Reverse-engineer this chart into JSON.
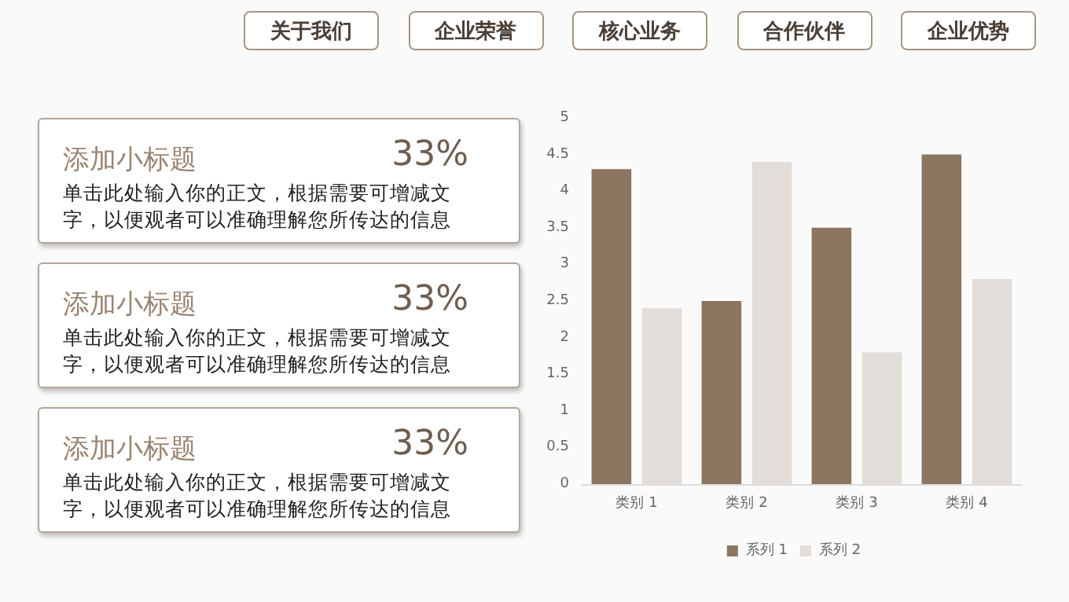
{
  "chart_data": [
    {
      "type": "other",
      "annotations": [
        "关于我们",
        "企业荣誉",
        "核心业务",
        "合作伙伴",
        "企业优势",
        "添加小标题",
        "33%",
        "单击此处输入你的正文，根据需要可增减文字，以便观者可以准确理解您所传达的信息",
        "添加小标题",
        "33%",
        "单击此处输入你的正文，根据需要可增减文字，以便观者可以准确理解您所传达的信息",
        "添加小标题",
        "33%",
        "单击此处输入你的正文，根据需要可增减文字，以便观者可以准确理解您所传达的信息"
      ]
    },
    {
      "type": "bar",
      "categories": [
        "类别 1",
        "类别 2",
        "类别 3",
        "类别 4"
      ],
      "series": [
        {
          "name": "系列 1",
          "color": "#8c7561",
          "values": [
            4.3,
            2.5,
            3.5,
            4.5
          ]
        },
        {
          "name": "系列 2",
          "color": "#e2ddd8",
          "values": [
            2.4,
            4.4,
            1.8,
            2.8
          ]
        }
      ],
      "ylim": [
        0,
        5
      ],
      "yticks": [
        0,
        0.5,
        1,
        1.5,
        2,
        2.5,
        3,
        3.5,
        4,
        4.5,
        5
      ],
      "grid": false,
      "legend": "bottom"
    }
  ]
}
